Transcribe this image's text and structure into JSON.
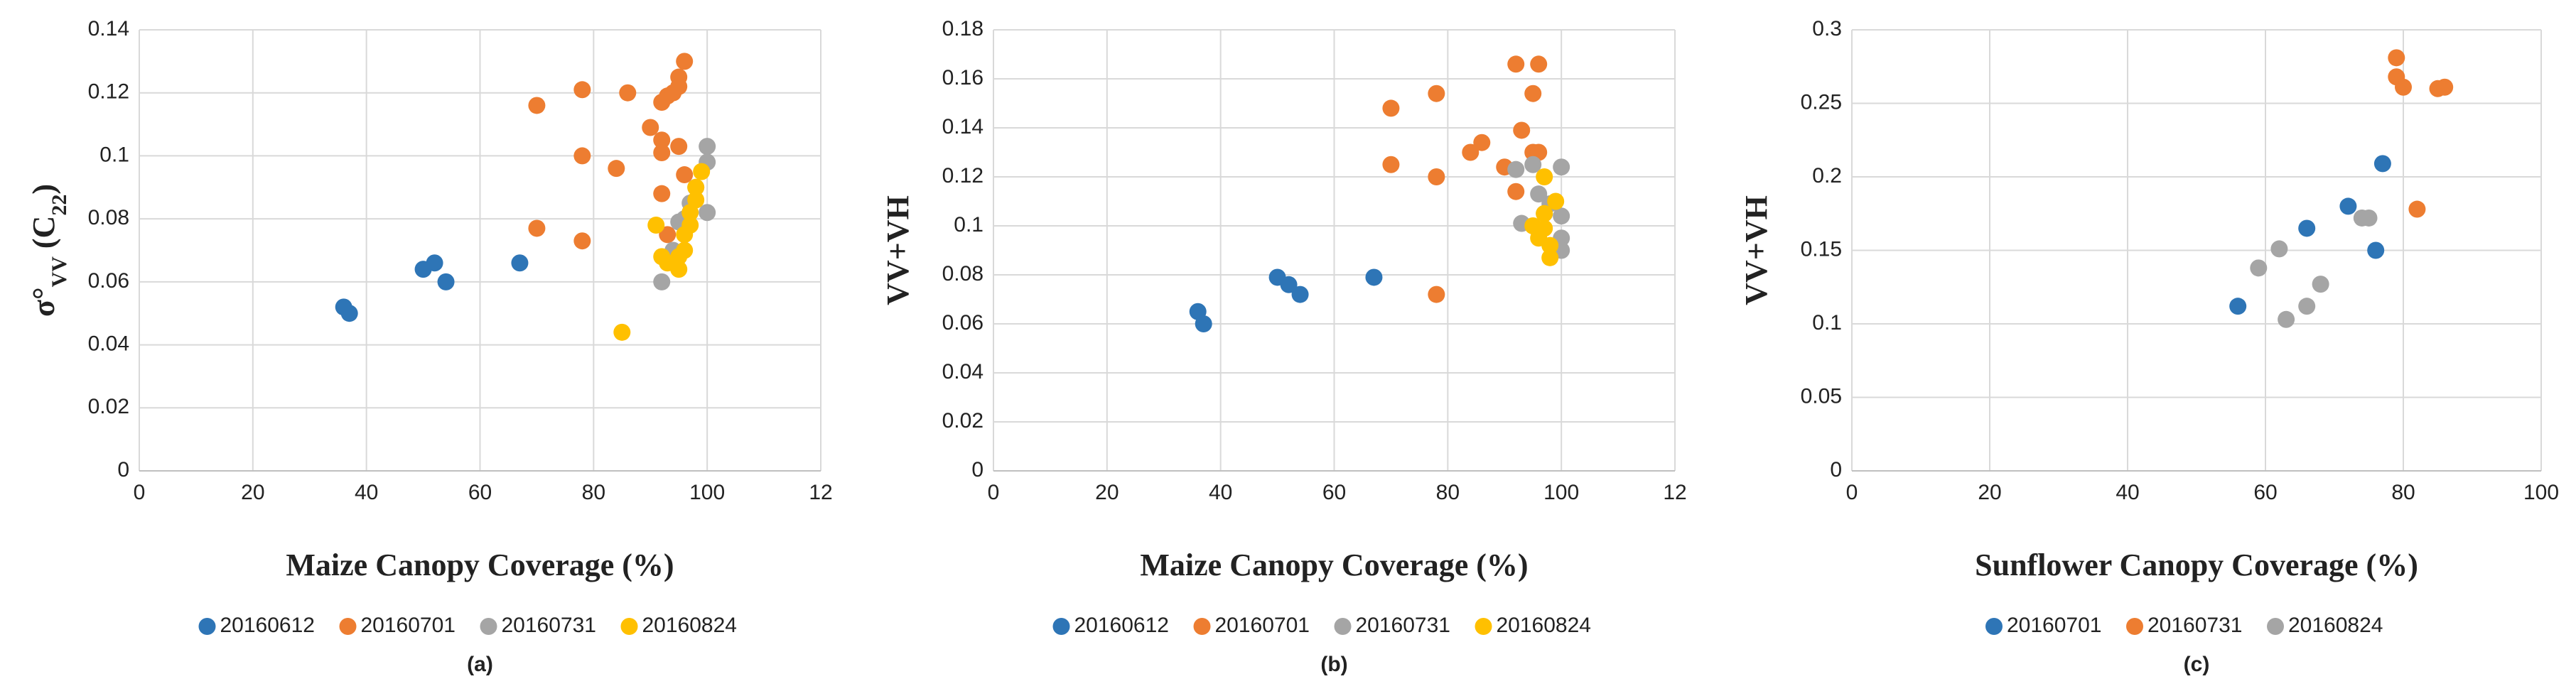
{
  "chart_data": [
    {
      "type": "scatter",
      "caption": "(a)",
      "xlabel": "Maize Canopy Coverage (%)",
      "ylabel": [
        "σ°",
        "VV",
        " (C",
        "22",
        ")"
      ],
      "xlim": [
        0,
        120
      ],
      "xticks": [
        0,
        20,
        40,
        60,
        80,
        100,
        {
          "value": 120,
          "label": "12"
        }
      ],
      "ylim": [
        0,
        0.14
      ],
      "yticks": [
        0,
        0.02,
        0.04,
        0.06,
        0.08,
        0.1,
        0.12,
        0.14
      ],
      "grid": true,
      "legend": "bottom",
      "series": [
        {
          "name": "20160612",
          "color": "#2e75b6",
          "x": [
            36,
            37,
            50,
            52,
            54,
            67
          ],
          "values": [
            0.052,
            0.05,
            0.064,
            0.066,
            0.06,
            0.066
          ]
        },
        {
          "name": "20160701",
          "color": "#ed7d31",
          "x": [
            70,
            70,
            78,
            78,
            78,
            84,
            86,
            90,
            92,
            92,
            92,
            92,
            93,
            94,
            95,
            95,
            95,
            96,
            96,
            93
          ],
          "values": [
            0.116,
            0.077,
            0.121,
            0.1,
            0.073,
            0.096,
            0.12,
            0.109,
            0.117,
            0.105,
            0.101,
            0.088,
            0.119,
            0.12,
            0.125,
            0.122,
            0.103,
            0.13,
            0.094,
            0.075
          ]
        },
        {
          "name": "20160731",
          "color": "#a5a5a5",
          "x": [
            92,
            94,
            95,
            96,
            98,
            100,
            100,
            100,
            97,
            93
          ],
          "values": [
            0.06,
            0.07,
            0.079,
            0.08,
            0.09,
            0.103,
            0.098,
            0.082,
            0.085,
            0.067
          ]
        },
        {
          "name": "20160824",
          "color": "#ffc000",
          "x": [
            85,
            91,
            92,
            93,
            95,
            96,
            96,
            97,
            98,
            98,
            99,
            97,
            95
          ],
          "values": [
            0.044,
            0.078,
            0.068,
            0.066,
            0.064,
            0.07,
            0.075,
            0.082,
            0.086,
            0.09,
            0.095,
            0.078,
            0.068
          ]
        }
      ]
    },
    {
      "type": "scatter",
      "caption": "(b)",
      "xlabel": "Maize Canopy Coverage (%)",
      "ylabel": [
        "VV+VH"
      ],
      "xlim": [
        0,
        120
      ],
      "xticks": [
        0,
        20,
        40,
        60,
        80,
        100,
        {
          "value": 120,
          "label": "12"
        }
      ],
      "ylim": [
        0,
        0.18
      ],
      "yticks": [
        0,
        0.02,
        0.04,
        0.06,
        0.08,
        0.1,
        0.12,
        0.14,
        0.16,
        0.18
      ],
      "grid": true,
      "legend": "bottom",
      "series": [
        {
          "name": "20160612",
          "color": "#2e75b6",
          "x": [
            36,
            37,
            50,
            52,
            54,
            67
          ],
          "values": [
            0.065,
            0.06,
            0.079,
            0.076,
            0.072,
            0.079
          ]
        },
        {
          "name": "20160701",
          "color": "#ed7d31",
          "x": [
            70,
            70,
            78,
            78,
            78,
            84,
            86,
            90,
            92,
            92,
            93,
            95,
            95,
            96,
            96
          ],
          "values": [
            0.148,
            0.125,
            0.154,
            0.12,
            0.072,
            0.13,
            0.134,
            0.124,
            0.166,
            0.114,
            0.139,
            0.154,
            0.13,
            0.166,
            0.13
          ]
        },
        {
          "name": "20160731",
          "color": "#a5a5a5",
          "x": [
            92,
            93,
            95,
            96,
            98,
            100,
            100,
            100,
            100,
            97
          ],
          "values": [
            0.123,
            0.101,
            0.125,
            0.113,
            0.109,
            0.124,
            0.104,
            0.095,
            0.09,
            0.105
          ]
        },
        {
          "name": "20160824",
          "color": "#ffc000",
          "x": [
            95,
            96,
            96,
            97,
            97,
            98,
            98,
            99,
            97
          ],
          "values": [
            0.1,
            0.098,
            0.095,
            0.12,
            0.105,
            0.092,
            0.087,
            0.11,
            0.099
          ]
        }
      ]
    },
    {
      "type": "scatter",
      "caption": "(c)",
      "xlabel": "Sunflower Canopy Coverage (%)",
      "ylabel": [
        "VV+VH"
      ],
      "xlim": [
        0,
        100
      ],
      "xticks": [
        0,
        20,
        40,
        60,
        80,
        100
      ],
      "ylim": [
        0,
        0.3
      ],
      "yticks": [
        0,
        0.05,
        0.1,
        0.15,
        0.2,
        0.25,
        0.3
      ],
      "grid": true,
      "legend": "bottom",
      "series": [
        {
          "name": "20160701",
          "color": "#2e75b6",
          "x": [
            56,
            66,
            72,
            76,
            77
          ],
          "values": [
            0.112,
            0.165,
            0.18,
            0.15,
            0.209
          ]
        },
        {
          "name": "20160731",
          "color": "#ed7d31",
          "x": [
            79,
            79,
            80,
            82,
            85,
            86
          ],
          "values": [
            0.281,
            0.268,
            0.261,
            0.178,
            0.26,
            0.261
          ]
        },
        {
          "name": "20160824",
          "color": "#a5a5a5",
          "x": [
            59,
            62,
            63,
            66,
            68,
            74,
            75
          ],
          "values": [
            0.138,
            0.151,
            0.103,
            0.112,
            0.127,
            0.172,
            0.172
          ]
        }
      ]
    }
  ]
}
